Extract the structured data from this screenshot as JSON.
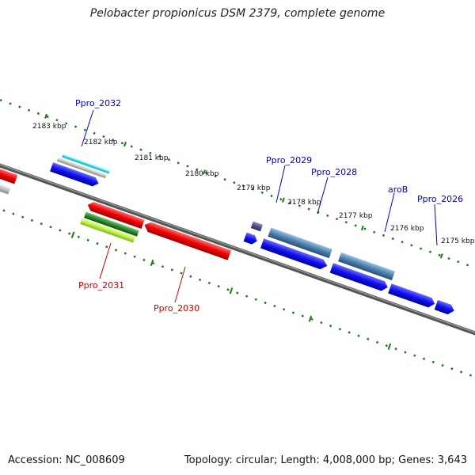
{
  "title": "Pelobacter propionicus DSM 2379, complete genome",
  "footer": {
    "accession": "Accession: NC_008609",
    "stats": "Topology: circular; Length: 4,008,000 bp; Genes: 3,643"
  },
  "scale": {
    "ticks": [
      "2183 kbp",
      "2182 kbp",
      "2181 kbp",
      "2180 kbp",
      "2179 kbp",
      "2178 kbp",
      "2177 kbp",
      "2176 kbp",
      "2175 kbp"
    ]
  },
  "genes": [
    {
      "name": "Ppro_2032",
      "color": "#0000cc"
    },
    {
      "name": "Ppro_2029",
      "color": "#0000cc"
    },
    {
      "name": "Ppro_2028",
      "color": "#0000cc"
    },
    {
      "name": "aroB",
      "color": "#0000cc"
    },
    {
      "name": "Ppro_2026",
      "color": "#0000cc"
    },
    {
      "name": "Ppro_2031",
      "color": "#cc0000"
    },
    {
      "name": "Ppro_2030",
      "color": "#cc0000"
    }
  ],
  "colors": {
    "forward_cds": "#1010ee",
    "reverse_cds": "#ee0000",
    "backbone": "#707070",
    "ticks": "#1a7a1a"
  }
}
